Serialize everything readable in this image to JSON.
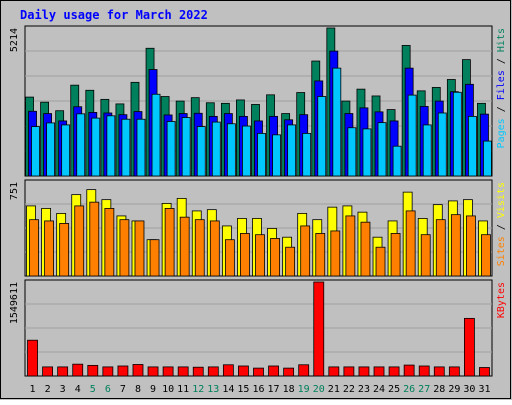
{
  "chart_data": {
    "type": "bar",
    "title": "Daily usage for March 2022",
    "categories": [
      "1",
      "2",
      "3",
      "4",
      "5",
      "6",
      "7",
      "8",
      "9",
      "10",
      "11",
      "12",
      "13",
      "14",
      "15",
      "16",
      "17",
      "18",
      "19",
      "20",
      "21",
      "22",
      "23",
      "24",
      "25",
      "26",
      "27",
      "28",
      "29",
      "30",
      "31"
    ],
    "weekend_days": [
      5,
      6,
      12,
      13,
      19,
      20,
      26,
      27
    ],
    "colors": {
      "hits": "#00805c",
      "files": "#0000ff",
      "pages": "#00c8ff",
      "visits": "#ffff00",
      "sites": "#ff8000",
      "kbytes": "#ff0000",
      "title": "#0000ff",
      "weekday_label": "#000000",
      "weekend_label": "#00805c",
      "panel_bg": "#c0c0c0",
      "outer_bg": "#ffffff"
    },
    "panels": [
      {
        "id": "hits",
        "axis_max": 5214,
        "ylabel_max": "5214",
        "legend": [
          {
            "text": "Pages",
            "color": "#00c8ff"
          },
          {
            "text": " / ",
            "color": "#000000"
          },
          {
            "text": "Files",
            "color": "#0000ff"
          },
          {
            "text": " / ",
            "color": "#000000"
          },
          {
            "text": "Hits",
            "color": "#00805c"
          }
        ],
        "series": [
          {
            "name": "Hits",
            "color": "#00805c",
            "values": [
              2780,
              2600,
              2300,
              3200,
              3020,
              2700,
              2540,
              3300,
              4500,
              2800,
              2640,
              2760,
              2580,
              2560,
              2680,
              2520,
              2860,
              2200,
              2940,
              4050,
              5214,
              2640,
              3060,
              2820,
              2340,
              4600,
              3000,
              3120,
              3400,
              4100,
              2560
            ]
          },
          {
            "name": "Files",
            "color": "#0000ff",
            "values": [
              2280,
              2200,
              1940,
              2440,
              2240,
              2220,
              2160,
              2270,
              3750,
              2150,
              2200,
              2210,
              2100,
              2200,
              2100,
              1940,
              2100,
              1980,
              2160,
              3350,
              4400,
              2200,
              2400,
              2260,
              1940,
              3800,
              2450,
              2640,
              2970,
              3230,
              2180
            ]
          },
          {
            "name": "Pages",
            "color": "#00c8ff",
            "values": [
              1740,
              1870,
              1800,
              2190,
              2040,
              2120,
              2000,
              2000,
              2880,
              1920,
              2060,
              1740,
              1900,
              1840,
              1760,
              1500,
              1450,
              1800,
              1500,
              2800,
              3800,
              1700,
              1660,
              1880,
              1050,
              2850,
              1800,
              2220,
              2950,
              2100,
              1230
            ]
          }
        ]
      },
      {
        "id": "visits",
        "axis_max": 751,
        "ylabel_max": "751",
        "legend": [
          {
            "text": "Sites",
            "color": "#ff8000"
          },
          {
            "text": " / ",
            "color": "#000000"
          },
          {
            "text": "Visits",
            "color": "#ffff00"
          }
        ],
        "series": [
          {
            "name": "Visits",
            "color": "#ffff00",
            "values": [
              560,
              540,
              500,
              650,
              690,
              610,
              480,
              440,
              290,
              580,
              620,
              520,
              530,
              400,
              460,
              460,
              380,
              310,
              500,
              450,
              550,
              560,
              510,
              310,
              440,
              670,
              460,
              570,
              600,
              610,
              440
            ]
          },
          {
            "name": "Sites",
            "color": "#ff8000",
            "values": [
              450,
              440,
              420,
              560,
              590,
              540,
              450,
              440,
              290,
              540,
              470,
              450,
              440,
              290,
              340,
              330,
              300,
              230,
              400,
              340,
              360,
              480,
              430,
              230,
              340,
              520,
              330,
              450,
              490,
              480,
              330
            ]
          }
        ]
      },
      {
        "id": "kbytes",
        "axis_max": 1549611,
        "ylabel_max": "1549611",
        "legend": [
          {
            "text": "KBytes",
            "color": "#ff0000"
          }
        ],
        "series": [
          {
            "name": "KBytes",
            "color": "#ff0000",
            "values": [
              590000,
              150000,
              150000,
              195000,
              175000,
              150000,
              165000,
              190000,
              150000,
              150000,
              150000,
              145000,
              150000,
              185000,
              165000,
              130000,
              165000,
              130000,
              185000,
              1549611,
              150000,
              150000,
              150000,
              150000,
              150000,
              180000,
              165000,
              150000,
              150000,
              950000,
              140000
            ]
          }
        ]
      }
    ]
  }
}
